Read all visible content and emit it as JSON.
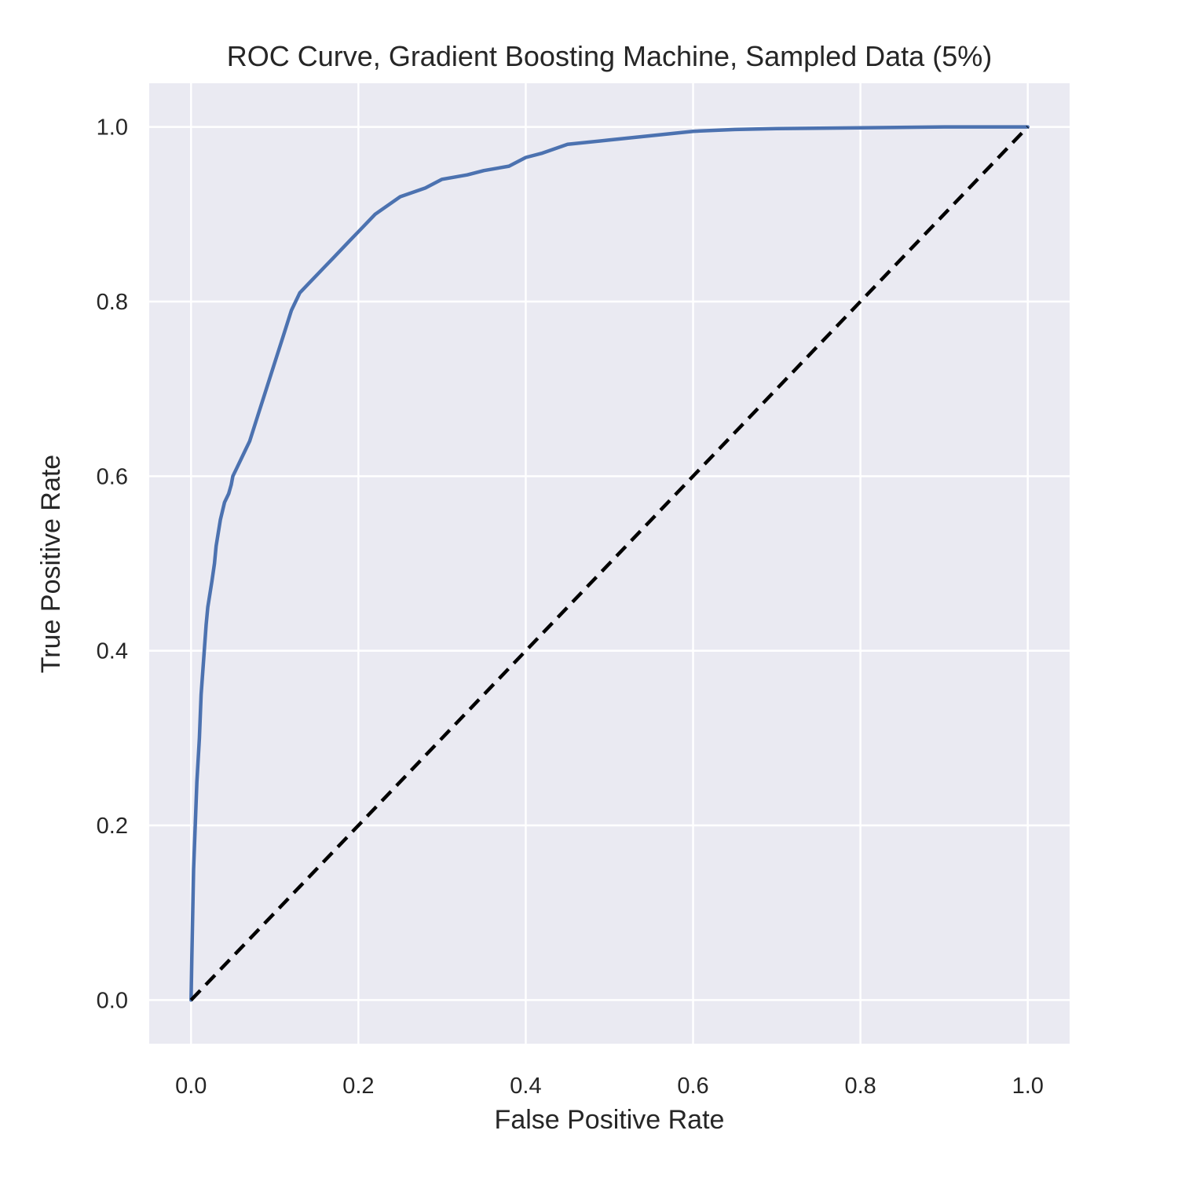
{
  "chart_data": {
    "type": "line",
    "title": "ROC Curve, Gradient Boosting Machine, Sampled Data (5%)",
    "xlabel": "False Positive Rate",
    "ylabel": "True Positive Rate",
    "xlim": [
      -0.05,
      1.05
    ],
    "ylim": [
      -0.05,
      1.05
    ],
    "xticks": [
      "0.0",
      "0.2",
      "0.4",
      "0.6",
      "0.8",
      "1.0"
    ],
    "yticks": [
      "0.0",
      "0.2",
      "0.4",
      "0.6",
      "0.8",
      "1.0"
    ],
    "grid": true,
    "background_color": "#eaeaf2",
    "grid_color": "#ffffff",
    "series": [
      {
        "style": "solid",
        "color": "#4c72b0",
        "x": [
          0.0,
          0.001,
          0.002,
          0.003,
          0.005,
          0.007,
          0.01,
          0.012,
          0.015,
          0.018,
          0.02,
          0.025,
          0.028,
          0.03,
          0.035,
          0.04,
          0.045,
          0.048,
          0.05,
          0.055,
          0.06,
          0.065,
          0.07,
          0.08,
          0.09,
          0.1,
          0.11,
          0.12,
          0.13,
          0.14,
          0.15,
          0.16,
          0.17,
          0.18,
          0.19,
          0.2,
          0.22,
          0.25,
          0.28,
          0.3,
          0.33,
          0.35,
          0.38,
          0.4,
          0.42,
          0.45,
          0.5,
          0.55,
          0.6,
          0.65,
          0.7,
          0.8,
          0.9,
          1.0
        ],
        "y": [
          0.0,
          0.05,
          0.1,
          0.15,
          0.2,
          0.25,
          0.3,
          0.35,
          0.39,
          0.43,
          0.45,
          0.48,
          0.5,
          0.52,
          0.55,
          0.57,
          0.58,
          0.59,
          0.6,
          0.61,
          0.62,
          0.63,
          0.64,
          0.67,
          0.7,
          0.73,
          0.76,
          0.79,
          0.81,
          0.82,
          0.83,
          0.84,
          0.85,
          0.86,
          0.87,
          0.88,
          0.9,
          0.92,
          0.93,
          0.94,
          0.945,
          0.95,
          0.955,
          0.965,
          0.97,
          0.98,
          0.985,
          0.99,
          0.995,
          0.997,
          0.998,
          0.999,
          1.0,
          1.0
        ]
      },
      {
        "style": "dashed",
        "color": "#000000",
        "x": [
          0.0,
          1.0
        ],
        "y": [
          0.0,
          1.0
        ]
      }
    ]
  }
}
